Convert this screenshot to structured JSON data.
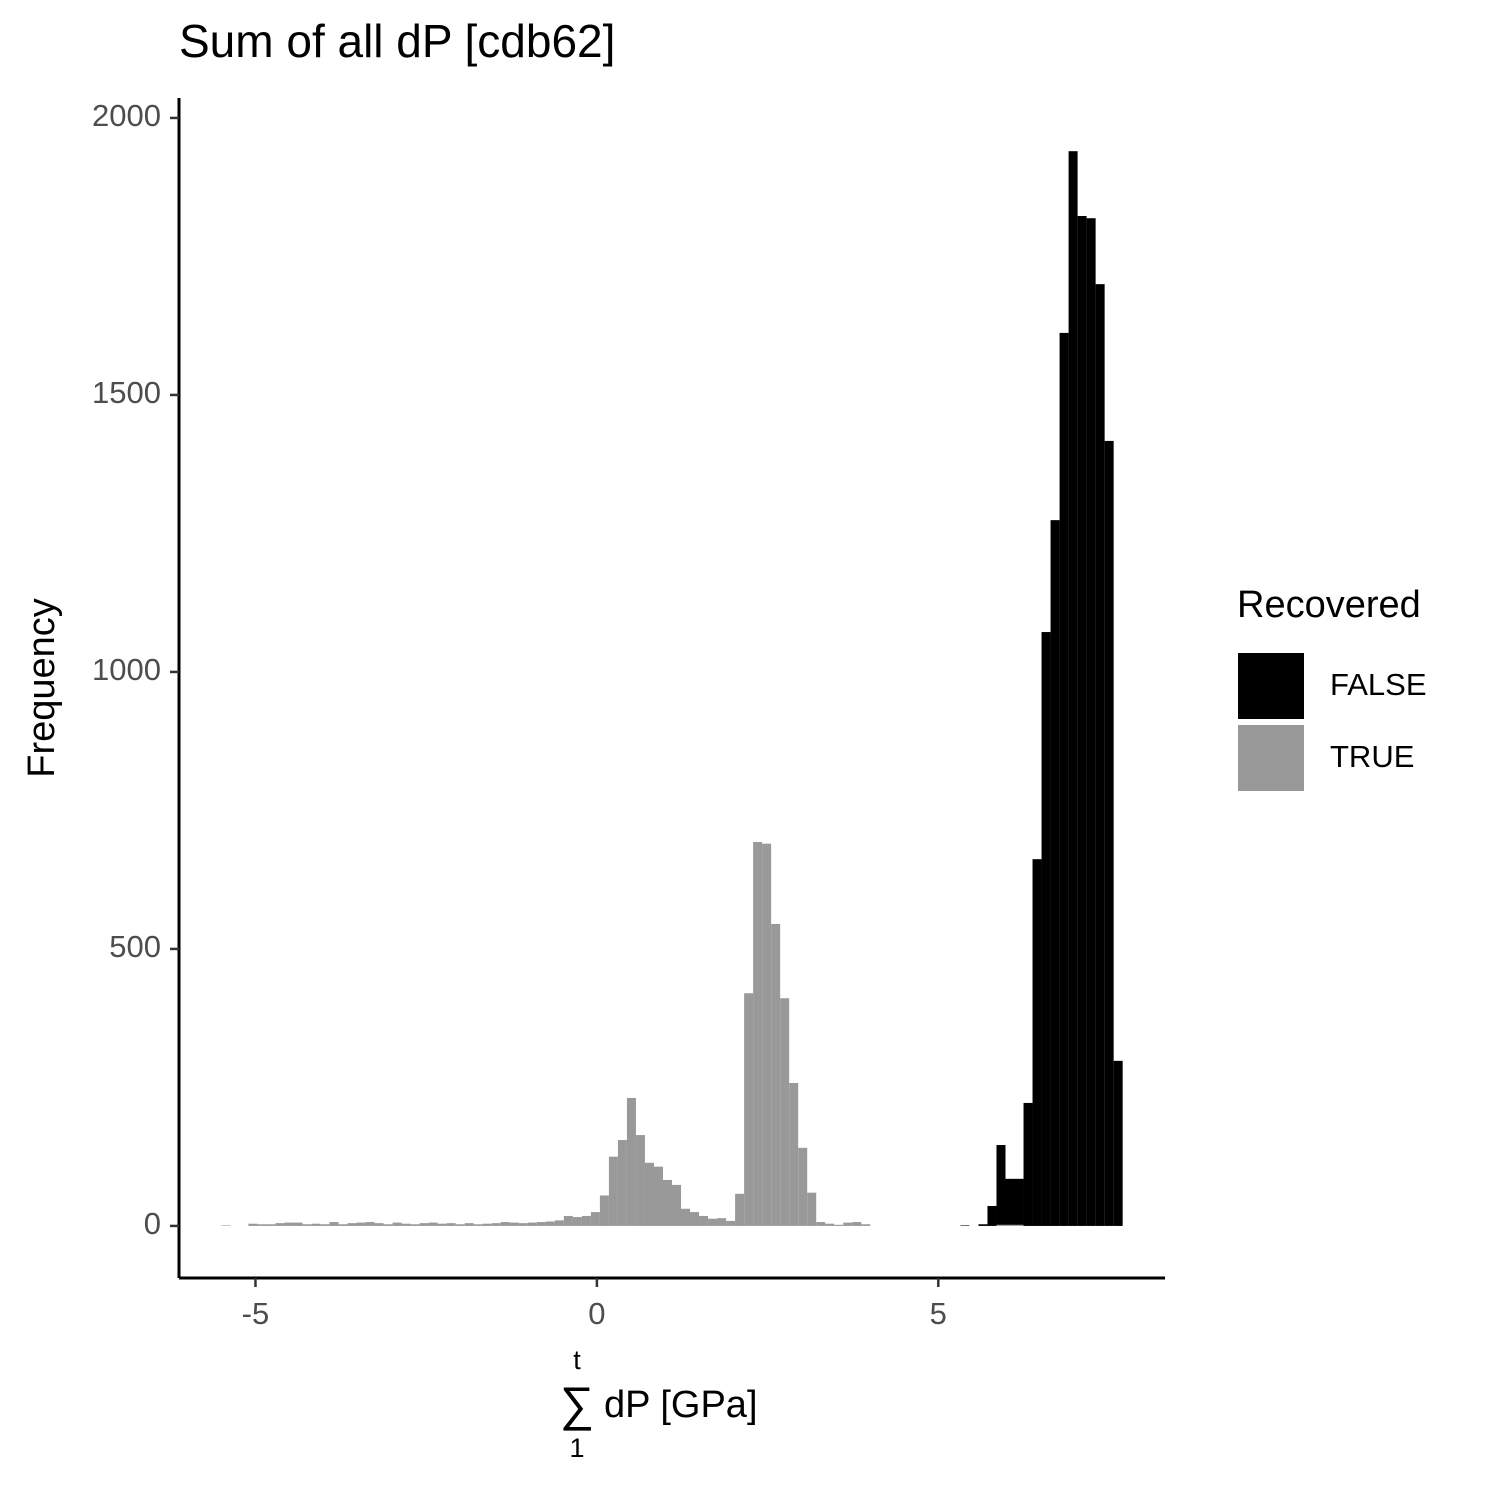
{
  "chart_data": {
    "type": "histogram",
    "title": "Sum of all dP [cdb62]",
    "x_label_sum": "∑",
    "x_label_sum_upper": "t",
    "x_label_sum_lower": "1",
    "x_label": "dP [GPa]",
    "y_label": "Frequency",
    "legend_title": "Recovered",
    "legend_position": "right",
    "stacked": true,
    "bins": [
      -5.5,
      -5.368,
      -5.236,
      -5.104,
      -4.972,
      -4.84,
      -4.708,
      -4.576,
      -4.444,
      -4.312,
      -4.18,
      -4.048,
      -3.916,
      -3.784,
      -3.652,
      -3.52,
      -3.388,
      -3.256,
      -3.124,
      -2.992,
      -2.86,
      -2.728,
      -2.596,
      -2.464,
      -2.332,
      -2.2,
      -2.068,
      -1.936,
      -1.804,
      -1.672,
      -1.54,
      -1.408,
      -1.276,
      -1.144,
      -1.012,
      -0.88,
      -0.748,
      -0.616,
      -0.484,
      -0.352,
      -0.22,
      -0.088,
      0.044,
      0.176,
      0.308,
      0.44,
      0.572,
      0.704,
      0.836,
      0.968,
      1.1,
      1.232,
      1.364,
      1.496,
      1.628,
      1.76,
      1.892,
      2.024,
      2.156,
      2.288,
      2.42,
      2.552,
      2.684,
      2.816,
      2.948,
      3.08,
      3.212,
      3.344,
      3.476,
      3.608,
      3.74,
      3.872,
      4.004,
      4.136,
      4.268,
      4.4,
      4.532,
      4.664,
      4.796,
      4.928,
      5.06,
      5.192,
      5.324,
      5.456,
      5.588,
      5.72,
      5.852,
      5.984,
      6.116,
      6.248,
      6.38,
      6.512,
      6.644,
      6.776,
      6.908,
      7.04,
      7.172,
      7.304,
      7.436,
      7.568,
      7.7
    ],
    "series": [
      {
        "name": "FALSE",
        "color": "#000000",
        "values": [
          0,
          0,
          0,
          0,
          0,
          0,
          0,
          0,
          0,
          0,
          0,
          0,
          0,
          0,
          0,
          0,
          0,
          0,
          0,
          0,
          0,
          0,
          0,
          0,
          0,
          0,
          0,
          0,
          0,
          0,
          0,
          0,
          0,
          0,
          0,
          0,
          0,
          0,
          0,
          0,
          0,
          0,
          0,
          0,
          0,
          0,
          0,
          0,
          0,
          0,
          0,
          0,
          0,
          0,
          0,
          0,
          0,
          0,
          0,
          0,
          0,
          0,
          0,
          0,
          0,
          0,
          0,
          0,
          0,
          0,
          0,
          0,
          0,
          0,
          0,
          0,
          0,
          0,
          0,
          0,
          0,
          0,
          1,
          0,
          3,
          36,
          144,
          83,
          83,
          222,
          662,
          1072,
          1274,
          1612,
          1940,
          1823,
          1819,
          1700,
          1417,
          298
        ]
      },
      {
        "name": "TRUE",
        "color": "#999999",
        "values": [
          1,
          0,
          0,
          4,
          3,
          3,
          5,
          6,
          6,
          3,
          4,
          3,
          7,
          3,
          5,
          6,
          7,
          5,
          3,
          6,
          4,
          3,
          5,
          6,
          4,
          5,
          3,
          5,
          3,
          4,
          5,
          7,
          6,
          5,
          6,
          7,
          8,
          10,
          18,
          16,
          18,
          25,
          55,
          125,
          155,
          231,
          164,
          114,
          107,
          83,
          74,
          31,
          25,
          18,
          13,
          14,
          9,
          58,
          420,
          693,
          690,
          545,
          411,
          258,
          141,
          60,
          7,
          4,
          2,
          6,
          7,
          3,
          0,
          0,
          0,
          0,
          0,
          0,
          0,
          0,
          0,
          0,
          0,
          0,
          0,
          0,
          2,
          2,
          2,
          0,
          0,
          0,
          0,
          0,
          0,
          0,
          0,
          0,
          0,
          0
        ]
      }
    ],
    "xlim": [
      -6.12,
      8.32
    ],
    "ylim": [
      -94,
      2036
    ],
    "xticks": [
      -5,
      0,
      5
    ],
    "yticks": [
      0,
      500,
      1000,
      1500,
      2000
    ]
  }
}
